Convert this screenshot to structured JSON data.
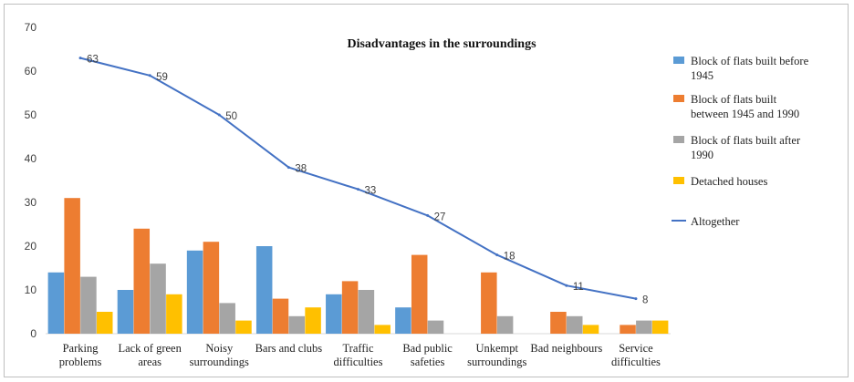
{
  "chart_data": {
    "type": "bar",
    "title": "Disadvantages in the surroundings",
    "categories": [
      [
        "Parking",
        "problems"
      ],
      [
        "Lack of green",
        "areas"
      ],
      [
        "Noisy",
        "surroundings"
      ],
      [
        "Bars and clubs"
      ],
      [
        "Traffic",
        "difficulties"
      ],
      [
        "Bad public",
        "safeties"
      ],
      [
        "Unkempt",
        "surroundings"
      ],
      [
        "Bad neighbours"
      ],
      [
        "Service",
        "difficulties"
      ]
    ],
    "ylim": [
      0,
      70
    ],
    "yticks": [
      0,
      10,
      20,
      30,
      40,
      50,
      60,
      70
    ],
    "grid": false,
    "legend_position": "right",
    "series": [
      {
        "name": "Block of flats built before 1945",
        "legend_lines": [
          "Block of flats built before",
          "1945"
        ],
        "color": "#5B9BD5",
        "kind": "bar",
        "values": [
          14,
          10,
          19,
          20,
          9,
          6,
          0,
          0,
          0
        ]
      },
      {
        "name": "Block of flats built between 1945 and 1990",
        "legend_lines": [
          "Block of flats built",
          "between 1945 and 1990"
        ],
        "color": "#ED7D31",
        "kind": "bar",
        "values": [
          31,
          24,
          21,
          8,
          12,
          18,
          14,
          5,
          2
        ]
      },
      {
        "name": "Block of flats built after 1990",
        "legend_lines": [
          "Block of flats built after",
          "1990"
        ],
        "color": "#A5A5A5",
        "kind": "bar",
        "values": [
          13,
          16,
          7,
          4,
          10,
          3,
          4,
          4,
          3
        ]
      },
      {
        "name": "Detached houses",
        "legend_lines": [
          "Detached houses"
        ],
        "color": "#FFC000",
        "kind": "bar",
        "values": [
          5,
          9,
          3,
          6,
          2,
          0,
          0,
          2,
          3
        ]
      },
      {
        "name": "Altogether",
        "legend_lines": [
          "Altogether"
        ],
        "color": "#4472C4",
        "kind": "line",
        "values": [
          63,
          59,
          50,
          38,
          33,
          27,
          18,
          11,
          8
        ],
        "labels": [
          "63",
          "59",
          "50",
          "38",
          "33",
          "27",
          "18",
          "11",
          "8"
        ]
      }
    ]
  }
}
